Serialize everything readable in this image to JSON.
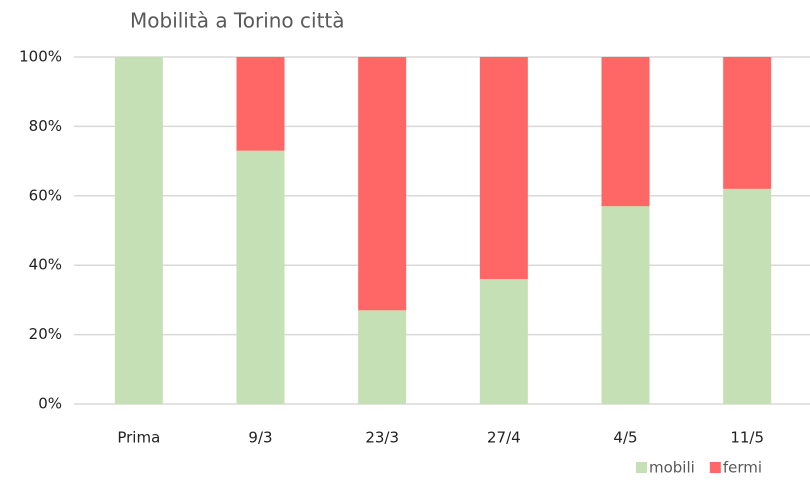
{
  "chart_data": {
    "type": "stacked_bar",
    "title": "Mobilità a Torino città",
    "categories": [
      "Prima",
      "9/3",
      "23/3",
      "27/4",
      "4/5",
      "11/5"
    ],
    "series": [
      {
        "name": "mobili",
        "color": "#c5e0b4",
        "values": [
          100,
          73,
          27,
          36,
          57,
          62
        ]
      },
      {
        "name": "fermi",
        "color": "#ff6666",
        "values": [
          0,
          27,
          73,
          64,
          43,
          38
        ]
      }
    ],
    "ylim": [
      0,
      100
    ],
    "yticks": [
      {
        "value": 0,
        "label": "0%"
      },
      {
        "value": 20,
        "label": "20%"
      },
      {
        "value": 40,
        "label": "40%"
      },
      {
        "value": 60,
        "label": "60%"
      },
      {
        "value": 80,
        "label": "80%"
      },
      {
        "value": 100,
        "label": "100%"
      }
    ],
    "grid": true,
    "legend": "bottom-right"
  }
}
